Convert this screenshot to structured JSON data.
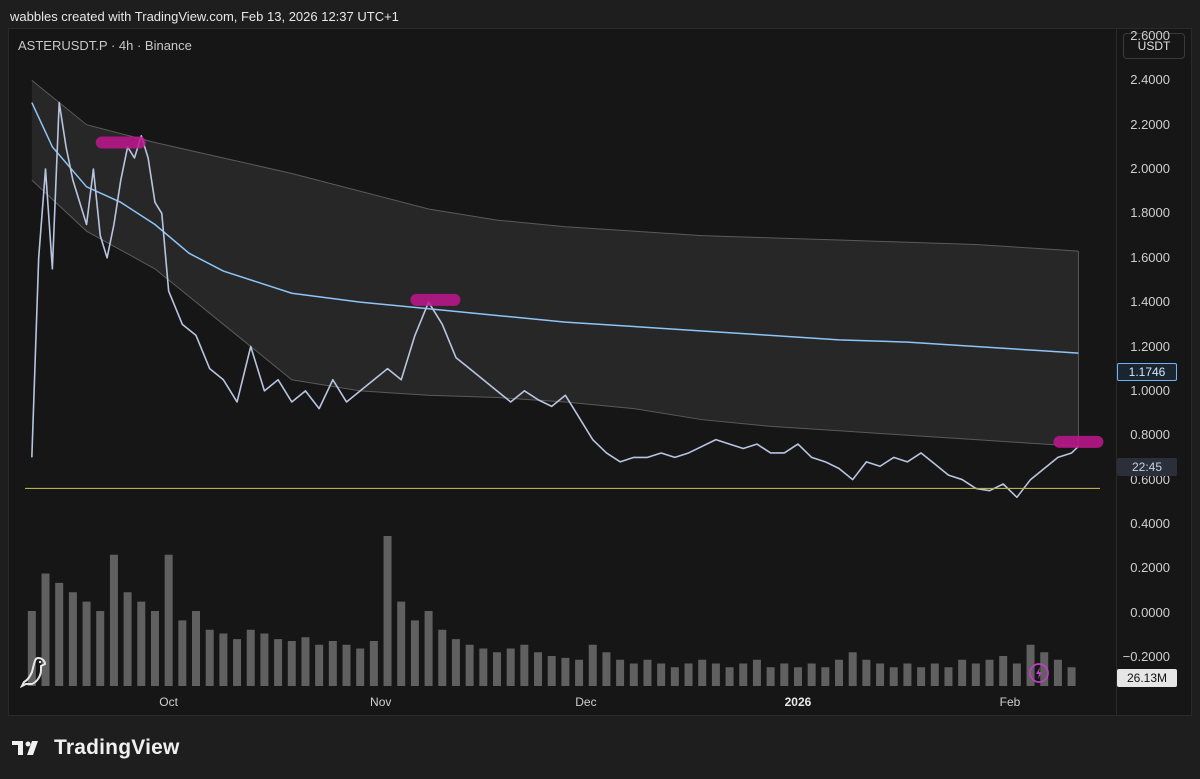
{
  "header": {
    "watermark": "wabbles created with TradingView.com, Feb 13, 2026 12:37 UTC+1"
  },
  "symbol": {
    "label": "ASTERUSDT.P · 4h · Binance"
  },
  "axis": {
    "currency": "USDT"
  },
  "badges": {
    "ma_value": "1.1746",
    "countdown": "22:45",
    "volume": "26.13M"
  },
  "footer": {
    "brand": "TradingView"
  },
  "colors": {
    "candle": "#b8c4e0",
    "ma_line": "#8ec5f7",
    "band_fill": "#2a2a2a",
    "band_edge": "#5a5a5a",
    "support_line": "#b6b24a",
    "highlight": "#c0168f",
    "volume": "#7a7a7a"
  },
  "chart_data": {
    "type": "line",
    "title": "ASTERUSDT.P · 4h · Binance",
    "y_ticks": [
      "2.6000",
      "2.4000",
      "2.2000",
      "2.0000",
      "1.8000",
      "1.6000",
      "1.4000",
      "1.2000",
      "1.0000",
      "0.8000",
      "0.6000",
      "0.4000",
      "0.2000",
      "0.0000",
      "−0.2000"
    ],
    "ylim": [
      -0.2,
      2.6
    ],
    "x_labels": [
      {
        "label": "Oct",
        "day": 12,
        "bold": false
      },
      {
        "label": "Nov",
        "day": 43,
        "bold": false
      },
      {
        "label": "Dec",
        "day": 73,
        "bold": false
      },
      {
        "label": "2026",
        "day": 104,
        "bold": true
      },
      {
        "label": "Feb",
        "day": 135,
        "bold": false
      }
    ],
    "xlim": [
      -9,
      154
    ],
    "price_series": {
      "name": "ASTERUSDT.P",
      "x": [
        -8,
        -7,
        -6,
        -5,
        -4,
        -3,
        -2,
        -1,
        0,
        1,
        2,
        3,
        4,
        5,
        6,
        7,
        8,
        9,
        10,
        11,
        12,
        14,
        16,
        18,
        20,
        22,
        24,
        26,
        28,
        30,
        32,
        34,
        36,
        38,
        40,
        42,
        44,
        46,
        48,
        50,
        52,
        54,
        56,
        58,
        60,
        62,
        64,
        66,
        68,
        70,
        72,
        74,
        76,
        78,
        80,
        82,
        84,
        86,
        88,
        90,
        92,
        94,
        96,
        98,
        100,
        102,
        104,
        106,
        108,
        110,
        112,
        114,
        116,
        118,
        120,
        122,
        124,
        126,
        128,
        130,
        132,
        134,
        136,
        138,
        140,
        142,
        144,
        145
      ],
      "y": [
        0.7,
        1.6,
        2.0,
        1.55,
        2.3,
        2.1,
        1.95,
        1.85,
        1.75,
        2.0,
        1.7,
        1.6,
        1.75,
        1.95,
        2.1,
        2.05,
        2.15,
        2.05,
        1.85,
        1.8,
        1.45,
        1.3,
        1.25,
        1.1,
        1.05,
        0.95,
        1.2,
        1.0,
        1.05,
        0.95,
        1.0,
        0.92,
        1.05,
        0.95,
        1.0,
        1.05,
        1.1,
        1.05,
        1.25,
        1.4,
        1.3,
        1.15,
        1.1,
        1.05,
        1.0,
        0.95,
        1.0,
        0.96,
        0.93,
        0.98,
        0.88,
        0.78,
        0.72,
        0.68,
        0.7,
        0.7,
        0.72,
        0.7,
        0.72,
        0.75,
        0.78,
        0.76,
        0.74,
        0.76,
        0.72,
        0.72,
        0.76,
        0.7,
        0.68,
        0.65,
        0.6,
        0.68,
        0.66,
        0.7,
        0.68,
        0.72,
        0.67,
        0.62,
        0.6,
        0.56,
        0.55,
        0.58,
        0.52,
        0.6,
        0.65,
        0.7,
        0.72,
        0.75
      ]
    },
    "ma_series": {
      "name": "Moving average",
      "x": [
        -8,
        -5,
        0,
        5,
        10,
        15,
        20,
        30,
        40,
        50,
        60,
        70,
        80,
        90,
        100,
        110,
        120,
        130,
        140,
        145
      ],
      "y": [
        2.3,
        2.1,
        1.92,
        1.85,
        1.75,
        1.62,
        1.54,
        1.44,
        1.4,
        1.37,
        1.34,
        1.31,
        1.29,
        1.27,
        1.25,
        1.23,
        1.22,
        1.2,
        1.18,
        1.17
      ]
    },
    "band_upper": {
      "x": [
        -8,
        0,
        10,
        20,
        30,
        40,
        50,
        60,
        70,
        80,
        90,
        100,
        110,
        120,
        130,
        140,
        145
      ],
      "y": [
        2.4,
        2.2,
        2.12,
        2.05,
        1.98,
        1.9,
        1.82,
        1.77,
        1.74,
        1.72,
        1.7,
        1.69,
        1.68,
        1.67,
        1.66,
        1.64,
        1.63
      ]
    },
    "band_lower": {
      "x": [
        -8,
        0,
        10,
        20,
        30,
        40,
        50,
        60,
        70,
        80,
        90,
        100,
        110,
        120,
        130,
        140,
        145
      ],
      "y": [
        1.95,
        1.72,
        1.55,
        1.3,
        1.05,
        1.0,
        0.98,
        0.97,
        0.95,
        0.92,
        0.87,
        0.84,
        0.82,
        0.8,
        0.78,
        0.76,
        0.75
      ]
    },
    "support_level": 0.56,
    "highlights": [
      {
        "day": 5,
        "price": 2.12
      },
      {
        "day": 51,
        "price": 1.41
      },
      {
        "day": 145,
        "price": 0.77
      }
    ],
    "volume": {
      "x": [
        -8,
        -6,
        -4,
        -2,
        0,
        2,
        4,
        6,
        8,
        10,
        12,
        14,
        16,
        18,
        20,
        22,
        24,
        26,
        28,
        30,
        32,
        34,
        36,
        38,
        40,
        42,
        44,
        46,
        48,
        50,
        52,
        54,
        56,
        58,
        60,
        62,
        64,
        66,
        68,
        70,
        72,
        74,
        76,
        78,
        80,
        82,
        84,
        86,
        88,
        90,
        92,
        94,
        96,
        98,
        100,
        102,
        104,
        106,
        108,
        110,
        112,
        114,
        116,
        118,
        120,
        122,
        124,
        126,
        128,
        130,
        132,
        134,
        136,
        138,
        140,
        142,
        144
      ],
      "values": [
        40,
        60,
        55,
        50,
        45,
        40,
        70,
        50,
        45,
        40,
        70,
        35,
        40,
        30,
        28,
        25,
        30,
        28,
        25,
        24,
        26,
        22,
        24,
        22,
        20,
        24,
        80,
        45,
        35,
        40,
        30,
        25,
        22,
        20,
        18,
        20,
        22,
        18,
        16,
        15,
        14,
        22,
        18,
        14,
        12,
        14,
        12,
        10,
        12,
        14,
        12,
        10,
        12,
        14,
        10,
        12,
        10,
        12,
        10,
        14,
        18,
        14,
        12,
        10,
        12,
        10,
        12,
        10,
        14,
        12,
        14,
        16,
        12,
        22,
        18,
        14,
        10
      ]
    }
  }
}
